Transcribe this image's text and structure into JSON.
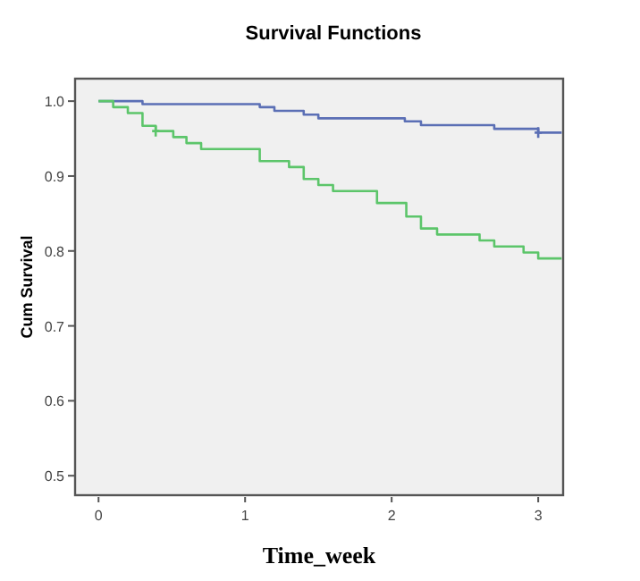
{
  "chart_data": {
    "type": "step",
    "title": "Survival Functions",
    "xlabel": "Time_week",
    "ylabel": "Cum Survival",
    "xlim": [
      -0.16,
      3.17
    ],
    "xticks": [
      0,
      1,
      2,
      3
    ],
    "ylim": [
      0.474,
      1.03
    ],
    "yticks": [
      {
        "value": 0.5,
        "label": "0.5"
      },
      {
        "value": 0.6,
        "label": "0.6"
      },
      {
        "value": 0.7,
        "label": "0.7"
      },
      {
        "value": 0.8,
        "label": "0.8"
      },
      {
        "value": 0.9,
        "label": "0.9"
      },
      {
        "value": 1,
        "label": "1.0"
      }
    ],
    "grid": false,
    "series": [
      {
        "color": "#5b6fb5",
        "x": [
          0,
          0.3,
          1.1,
          1.2,
          1.4,
          1.5,
          2.09,
          2.2,
          2.7,
          3.0,
          3.16
        ],
        "values": [
          1,
          0.996,
          0.992,
          0.987,
          0.982,
          0.977,
          0.973,
          0.968,
          0.963,
          0.958,
          0.958
        ]
      },
      {
        "color": "#5cc56a",
        "x": [
          0,
          0.1,
          0.2,
          0.3,
          0.39,
          0.51,
          0.6,
          0.7,
          1.1,
          1.3,
          1.4,
          1.5,
          1.6,
          1.9,
          2.1,
          2.2,
          2.31,
          2.6,
          2.7,
          2.9,
          3.0,
          3.16
        ],
        "values": [
          1,
          0.992,
          0.984,
          0.967,
          0.96,
          0.952,
          0.944,
          0.936,
          0.92,
          0.912,
          0.896,
          0.888,
          0.88,
          0.864,
          0.846,
          0.83,
          0.822,
          0.814,
          0.806,
          0.798,
          0.79,
          0.79
        ]
      },
      {
        "type": "scatter",
        "marker": "cross",
        "color": "#5b6fb5",
        "x": [
          3.0
        ],
        "values": [
          0.958
        ]
      },
      {
        "type": "scatter",
        "marker": "cross",
        "color": "#5cc56a",
        "x": [
          0.39
        ],
        "values": [
          0.96
        ]
      }
    ]
  }
}
